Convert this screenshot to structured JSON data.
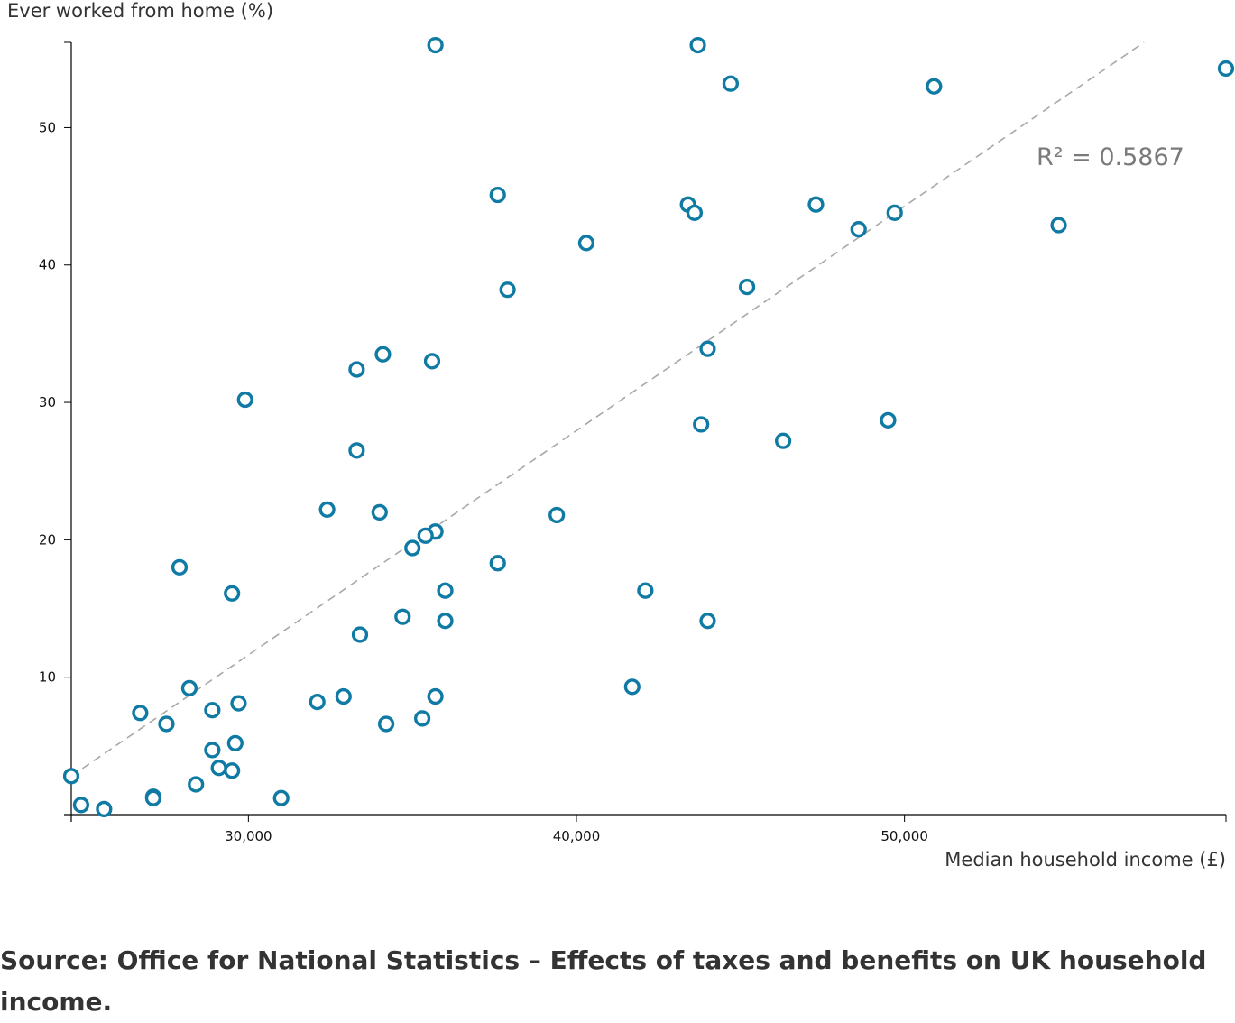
{
  "chart_data": {
    "type": "scatter",
    "title": "",
    "xlabel": "Median household income (£)",
    "ylabel": "Ever worked from home (%)",
    "xlim": [
      24600,
      59800
    ],
    "ylim": [
      0,
      56.2
    ],
    "x_ticks": [
      30000,
      40000,
      50000
    ],
    "x_tick_labels": [
      "30,000",
      "40,000",
      "50,000"
    ],
    "y_ticks": [
      10,
      20,
      30,
      40,
      50
    ],
    "y_tick_labels": [
      "10",
      "20",
      "30",
      "40",
      "50"
    ],
    "grid": false,
    "point_color": "#0f7aa3",
    "trendline": {
      "style": "dashed",
      "color": "#a8a8a8",
      "from": [
        24600,
        2.8
      ],
      "to": [
        57300,
        56.2
      ],
      "label": "R² = 0.5867"
    },
    "points": [
      {
        "x": 35700,
        "y": 56.0
      },
      {
        "x": 43700,
        "y": 56.0
      },
      {
        "x": 59800,
        "y": 54.3
      },
      {
        "x": 44700,
        "y": 53.2
      },
      {
        "x": 50900,
        "y": 53.0
      },
      {
        "x": 37600,
        "y": 45.1
      },
      {
        "x": 43400,
        "y": 44.4
      },
      {
        "x": 47300,
        "y": 44.4
      },
      {
        "x": 43600,
        "y": 43.8
      },
      {
        "x": 49700,
        "y": 43.8
      },
      {
        "x": 54700,
        "y": 42.9
      },
      {
        "x": 48600,
        "y": 42.6
      },
      {
        "x": 40300,
        "y": 41.6
      },
      {
        "x": 37900,
        "y": 38.2
      },
      {
        "x": 45200,
        "y": 38.4
      },
      {
        "x": 44000,
        "y": 33.9
      },
      {
        "x": 34100,
        "y": 33.5
      },
      {
        "x": 35600,
        "y": 33.0
      },
      {
        "x": 33300,
        "y": 32.4
      },
      {
        "x": 29900,
        "y": 30.2
      },
      {
        "x": 43800,
        "y": 28.4
      },
      {
        "x": 49500,
        "y": 28.7
      },
      {
        "x": 46300,
        "y": 27.2
      },
      {
        "x": 33300,
        "y": 26.5
      },
      {
        "x": 32400,
        "y": 22.2
      },
      {
        "x": 34000,
        "y": 22.0
      },
      {
        "x": 39400,
        "y": 21.8
      },
      {
        "x": 35700,
        "y": 20.6
      },
      {
        "x": 35400,
        "y": 20.3
      },
      {
        "x": 35000,
        "y": 19.4
      },
      {
        "x": 37600,
        "y": 18.3
      },
      {
        "x": 27900,
        "y": 18.0
      },
      {
        "x": 29500,
        "y": 16.1
      },
      {
        "x": 36000,
        "y": 16.3
      },
      {
        "x": 42100,
        "y": 16.3
      },
      {
        "x": 34700,
        "y": 14.4
      },
      {
        "x": 36000,
        "y": 14.1
      },
      {
        "x": 44000,
        "y": 14.1
      },
      {
        "x": 33400,
        "y": 13.1
      },
      {
        "x": 41700,
        "y": 9.3
      },
      {
        "x": 28200,
        "y": 9.2
      },
      {
        "x": 35700,
        "y": 8.6
      },
      {
        "x": 32900,
        "y": 8.6
      },
      {
        "x": 32100,
        "y": 8.2
      },
      {
        "x": 29700,
        "y": 8.1
      },
      {
        "x": 26700,
        "y": 7.4
      },
      {
        "x": 28900,
        "y": 7.6
      },
      {
        "x": 27500,
        "y": 6.6
      },
      {
        "x": 34200,
        "y": 6.6
      },
      {
        "x": 35300,
        "y": 7.0
      },
      {
        "x": 29600,
        "y": 5.2
      },
      {
        "x": 28900,
        "y": 4.7
      },
      {
        "x": 29100,
        "y": 3.4
      },
      {
        "x": 29500,
        "y": 3.2
      },
      {
        "x": 24600,
        "y": 2.8
      },
      {
        "x": 28400,
        "y": 2.2
      },
      {
        "x": 27100,
        "y": 1.3
      },
      {
        "x": 27100,
        "y": 1.2
      },
      {
        "x": 31000,
        "y": 1.2
      },
      {
        "x": 24900,
        "y": 0.7
      },
      {
        "x": 25600,
        "y": 0.4
      }
    ]
  },
  "source": "Source: Office for National Statistics – Effects of taxes and benefits on UK household income."
}
